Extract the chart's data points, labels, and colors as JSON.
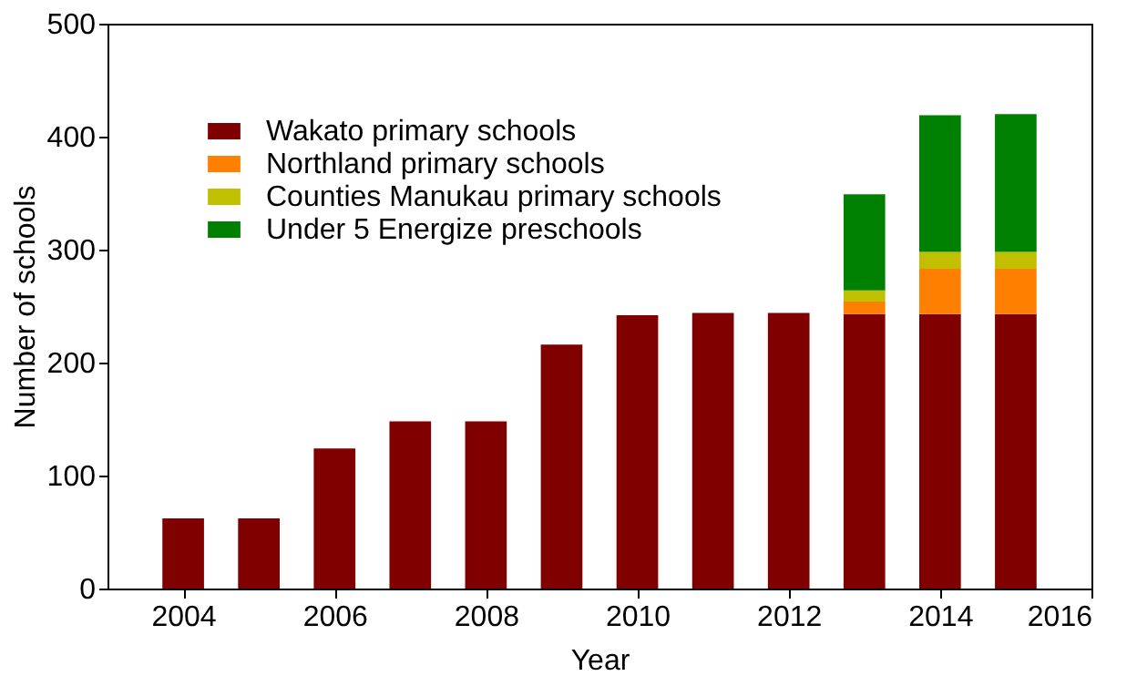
{
  "chart_data": {
    "type": "bar",
    "stacked": true,
    "xlabel": "Year",
    "ylabel": "Number of schools",
    "x": [
      2004,
      2005,
      2006,
      2007,
      2008,
      2009,
      2010,
      2011,
      2012,
      2013,
      2014,
      2015
    ],
    "series": [
      {
        "name": "Wakato primary schools",
        "color": "#800000",
        "values": [
          62,
          62,
          124,
          148,
          148,
          216,
          242,
          244,
          244,
          243,
          243,
          243
        ]
      },
      {
        "name": "Northland  primary schools",
        "color": "#ff8000",
        "values": [
          null,
          null,
          null,
          null,
          null,
          null,
          null,
          null,
          null,
          11,
          40,
          40
        ]
      },
      {
        "name": "Counties Manukau  primary schools",
        "color": "#c0c000",
        "values": [
          null,
          null,
          null,
          null,
          null,
          null,
          null,
          null,
          null,
          10,
          15,
          15
        ]
      },
      {
        "name": "Under 5 Energize preschools",
        "color": "#008000",
        "values": [
          null,
          null,
          null,
          null,
          null,
          null,
          null,
          null,
          null,
          85,
          121,
          122
        ]
      }
    ],
    "xlim": [
      2003,
      2016
    ],
    "xticks": [
      2004,
      2006,
      2008,
      2010,
      2012,
      2014,
      2016
    ],
    "ylim": [
      0,
      500
    ],
    "yticks": [
      0,
      100,
      200,
      300,
      400,
      500
    ],
    "grid": false,
    "legend": "top left"
  }
}
